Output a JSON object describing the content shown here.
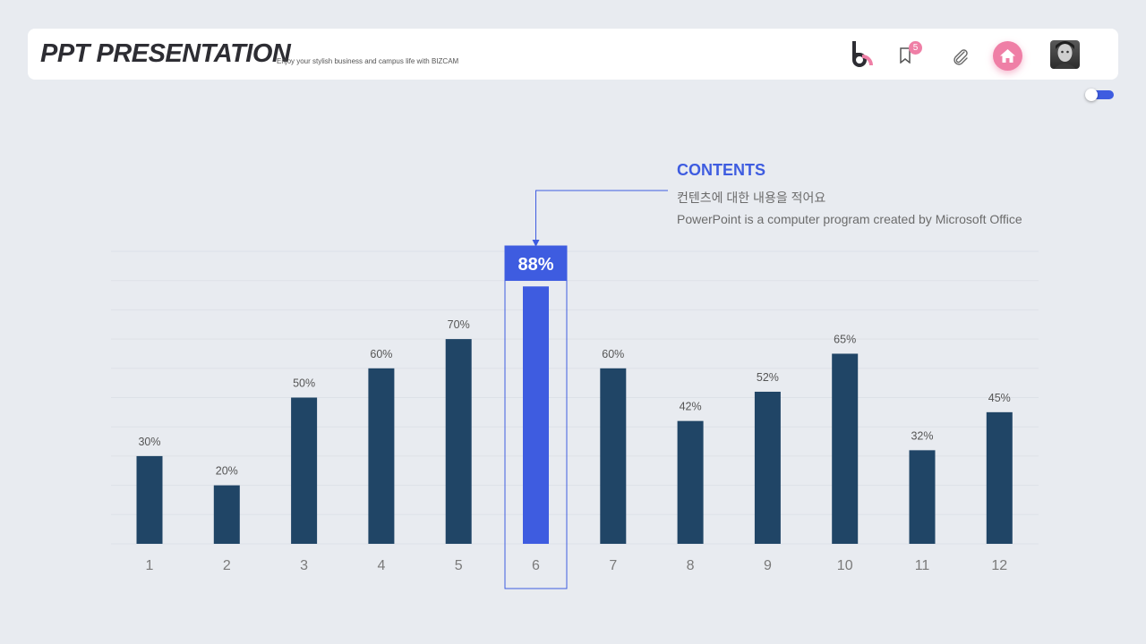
{
  "header": {
    "title": "PPT PRESENTATION",
    "subtitle": "Enjoy your stylish business and campus life with BIZCAM",
    "bookmark_count": "5",
    "icons": [
      "logo-icon",
      "bookmark-icon",
      "paperclip-icon",
      "home-icon",
      "avatar"
    ]
  },
  "toggle": {
    "on": true
  },
  "callout": {
    "title": "CONTENTS",
    "line1": "컨텐츠에 대한 내용을 적어요",
    "line2": "PowerPoint is a computer program created by Microsoft Office"
  },
  "colors": {
    "bar": "#204566",
    "highlight": "#3e5ce0",
    "accent_pink": "#ef7fa6",
    "background": "#e8ebf0"
  },
  "chart_data": {
    "type": "bar",
    "categories": [
      "1",
      "2",
      "3",
      "4",
      "5",
      "6",
      "7",
      "8",
      "9",
      "10",
      "11",
      "12"
    ],
    "values": [
      30,
      20,
      50,
      60,
      70,
      88,
      60,
      42,
      52,
      65,
      32,
      45
    ],
    "labels": [
      "30%",
      "20%",
      "50%",
      "60%",
      "70%",
      "88%",
      "60%",
      "42%",
      "52%",
      "65%",
      "32%",
      "45%"
    ],
    "highlight_index": 5,
    "ylim": [
      0,
      100
    ],
    "grid": true,
    "title": "",
    "xlabel": "",
    "ylabel": ""
  }
}
